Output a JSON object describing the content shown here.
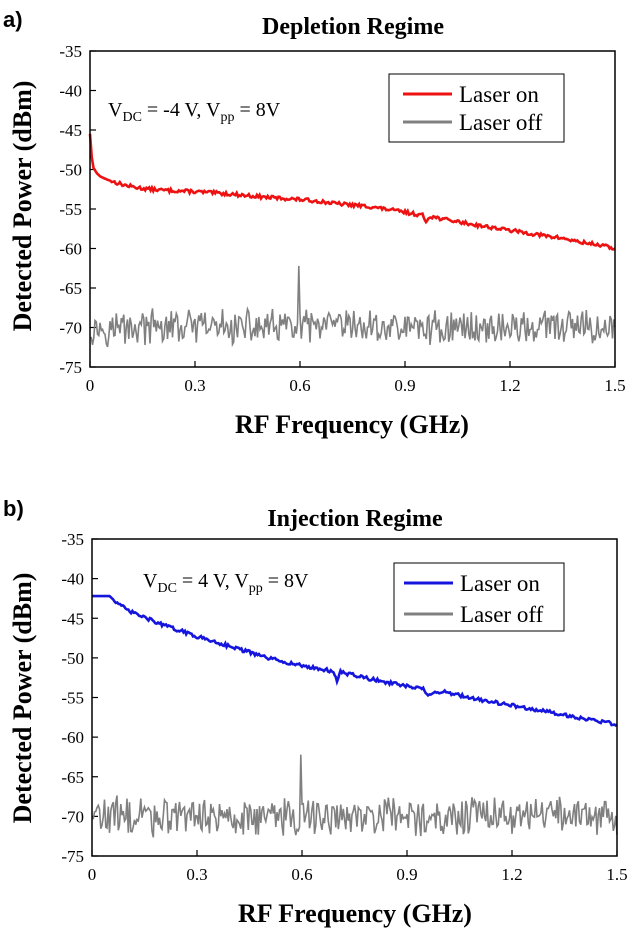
{
  "chart_data": [
    {
      "panel_label": "a)",
      "type": "line",
      "title": "Depletion Regime",
      "xlabel": "RF Frequency (GHz)",
      "ylabel": "Detected Power (dBm)",
      "xlim": [
        0,
        1.5
      ],
      "ylim": [
        -75,
        -35
      ],
      "xticks": [
        "0",
        "0.3",
        "0.6",
        "0.9",
        "1.2",
        "1.5"
      ],
      "yticks": [
        "-35",
        "-40",
        "-45",
        "-50",
        "-55",
        "-60",
        "-65",
        "-70",
        "-75"
      ],
      "annotation": {
        "v_main": "V",
        "dc_sub": "DC",
        "dc_text": " = -4 V, V",
        "pp_sub": "pp",
        "pp_text": " = 8V"
      },
      "legend_position": "top-right",
      "series": [
        {
          "name": "Laser on",
          "color": "#ee1111",
          "x": [
            0,
            0.005,
            0.01,
            0.02,
            0.03,
            0.05,
            0.07,
            0.1,
            0.15,
            0.2,
            0.3,
            0.4,
            0.5,
            0.6,
            0.65,
            0.7,
            0.8,
            0.9,
            0.95,
            0.96,
            0.97,
            1.0,
            1.1,
            1.2,
            1.3,
            1.35,
            1.4,
            1.45,
            1.5
          ],
          "y": [
            -45.5,
            -48.5,
            -49.8,
            -50.5,
            -50.9,
            -51.3,
            -51.6,
            -52.0,
            -52.4,
            -52.6,
            -52.8,
            -53.1,
            -53.5,
            -53.8,
            -54.0,
            -54.3,
            -54.7,
            -55.4,
            -55.8,
            -56.6,
            -55.9,
            -56.2,
            -57.0,
            -57.7,
            -58.4,
            -58.7,
            -59.2,
            -59.5,
            -60.0
          ]
        },
        {
          "name": "Laser off",
          "color": "#808080",
          "noise_floor": -70,
          "noise_range": [
            -72.5,
            -67.5
          ],
          "spike": {
            "x": 0.595,
            "y": -62.2
          }
        }
      ]
    },
    {
      "panel_label": "b)",
      "type": "line",
      "title": "Injection Regime",
      "xlabel": "RF Frequency (GHz)",
      "ylabel": "Detected Power (dBm)",
      "xlim": [
        0,
        1.5
      ],
      "ylim": [
        -75,
        -35
      ],
      "xticks": [
        "0",
        "0.3",
        "0.6",
        "0.9",
        "1.2",
        "1.5"
      ],
      "yticks": [
        "-35",
        "-40",
        "-45",
        "-50",
        "-55",
        "-60",
        "-65",
        "-70",
        "-75"
      ],
      "annotation": {
        "v_main": "V",
        "dc_sub": "DC",
        "dc_text": " = 4 V, V",
        "pp_sub": "pp",
        "pp_text": " = 8V"
      },
      "legend_position": "top-right",
      "series": [
        {
          "name": "Laser on",
          "color": "#1515dd",
          "x": [
            0,
            0.05,
            0.06,
            0.1,
            0.2,
            0.3,
            0.4,
            0.5,
            0.6,
            0.69,
            0.7,
            0.71,
            0.8,
            0.9,
            0.95,
            0.96,
            1.0,
            1.1,
            1.2,
            1.3,
            1.4,
            1.5
          ],
          "y": [
            -42.2,
            -42.2,
            -42.6,
            -44.0,
            -45.8,
            -47.3,
            -48.6,
            -50.0,
            -51.0,
            -51.7,
            -52.9,
            -51.8,
            -52.7,
            -53.6,
            -54.0,
            -54.8,
            -54.2,
            -55.2,
            -56.0,
            -56.8,
            -57.6,
            -58.4
          ]
        },
        {
          "name": "Laser off",
          "color": "#808080",
          "noise_floor": -70,
          "noise_range": [
            -72.5,
            -67.0
          ],
          "spike": {
            "x": 0.595,
            "y": -62.2
          }
        }
      ]
    }
  ]
}
